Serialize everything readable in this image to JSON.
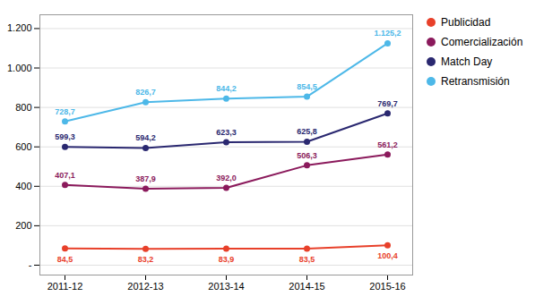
{
  "chart_data": {
    "type": "line",
    "categories": [
      "2011-12",
      "2012-13",
      "2013-14",
      "2014-15",
      "2015-16"
    ],
    "series": [
      {
        "name": "Publicidad",
        "color": "#e8402a",
        "values": [
          84.5,
          83.2,
          83.9,
          83.5,
          100.4
        ],
        "value_labels": [
          "84,5",
          "83,2",
          "83,9",
          "83,5",
          "100,4"
        ]
      },
      {
        "name": "Comercialización",
        "color": "#8b1a5c",
        "values": [
          407.1,
          387.9,
          392.0,
          506.3,
          561.2
        ],
        "value_labels": [
          "407,1",
          "387,9",
          "392,0",
          "506,3",
          "561,2"
        ]
      },
      {
        "name": "Match Day",
        "color": "#2a2870",
        "values": [
          599.3,
          594.2,
          623.3,
          625.8,
          769.7
        ],
        "value_labels": [
          "599,3",
          "594,2",
          "623,3",
          "625,8",
          "769,7"
        ]
      },
      {
        "name": "Retransmisión",
        "color": "#4db8e8",
        "values": [
          728.7,
          826.7,
          844.2,
          854.5,
          1125.2
        ],
        "value_labels": [
          "728,7",
          "826,7",
          "844,2",
          "854,5",
          "1.125,2"
        ]
      }
    ],
    "ylim": [
      -50,
      1270
    ],
    "yticks": [
      {
        "value": 0,
        "label": "-"
      },
      200,
      400,
      600,
      800,
      {
        "value": 1000,
        "label": "1.000"
      },
      {
        "value": 1200,
        "label": "1.200"
      }
    ],
    "grid": true,
    "legend": "right",
    "data_labels": true,
    "marker": "circle"
  }
}
